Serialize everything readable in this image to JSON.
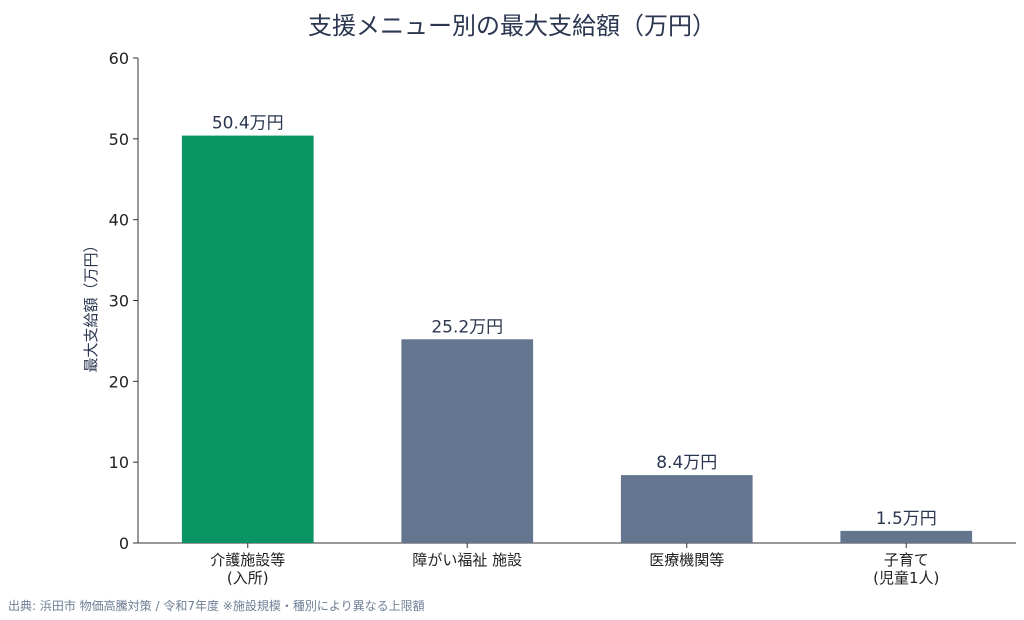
{
  "chart_data": {
    "type": "bar",
    "title": "支援メニュー別の最大支給額（万円）",
    "ylabel": "最大支給額（万円）",
    "xlabel": "",
    "ylim": [
      0,
      60
    ],
    "yticks": [
      0,
      10,
      20,
      30,
      40,
      50,
      60
    ],
    "categories": [
      "介護施設等\n(入所)",
      "障がい福祉 施設",
      "医療機関等",
      "子育て\n(児童1人)"
    ],
    "values": [
      50.4,
      25.2,
      8.4,
      1.5
    ],
    "data_labels": [
      "50.4万円",
      "25.2万円",
      "8.4万円",
      "1.5万円"
    ],
    "bar_colors": [
      "#0a9463",
      "#647590",
      "#647590",
      "#647590"
    ],
    "grid": false
  },
  "footer": {
    "source": "出典: 浜田市 物価高騰対策 / 令和7年度 ※施設規模・種別により異なる上限額"
  }
}
